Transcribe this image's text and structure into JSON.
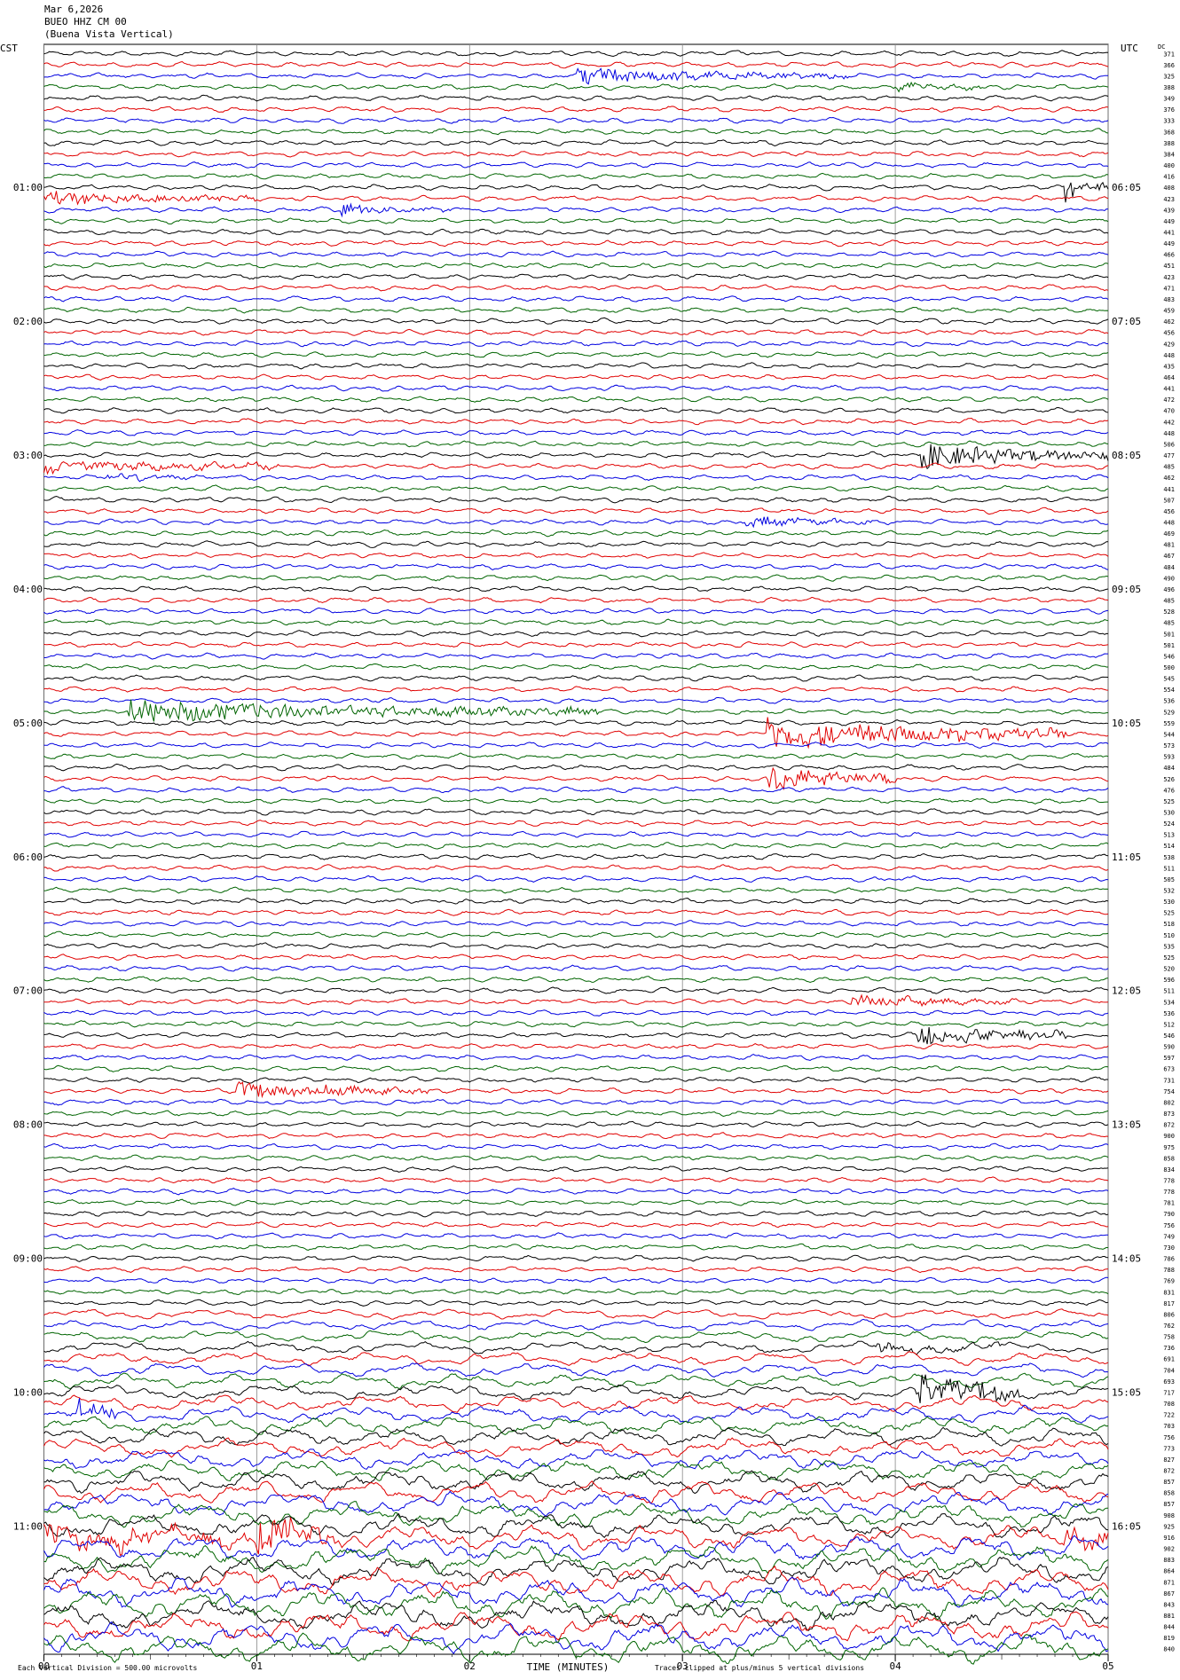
{
  "chart_data": {
    "type": "helicorder",
    "title": [
      "Mar 6,2026",
      "BUEO HHZ CM 00",
      "(Buena Vista Vertical)"
    ],
    "left_zone": "CST",
    "right_zone": "UTC",
    "dc_header": "DC",
    "left_labels": [
      "01:00",
      "02:00",
      "03:00",
      "04:00",
      "05:00",
      "06:00",
      "07:00",
      "08:00",
      "09:00",
      "10:00",
      "11:00"
    ],
    "right_labels": [
      "06:05",
      "07:05",
      "08:05",
      "09:05",
      "10:05",
      "11:05",
      "12:05",
      "13:05",
      "14:05",
      "15:05",
      "16:05"
    ],
    "dc_values": [
      371,
      366,
      325,
      388,
      349,
      376,
      333,
      368,
      388,
      384,
      400,
      416,
      408,
      423,
      439,
      449,
      441,
      449,
      466,
      451,
      423,
      471,
      483,
      459,
      462,
      456,
      429,
      448,
      435,
      464,
      441,
      472,
      470,
      442,
      448,
      506,
      477,
      485,
      462,
      441,
      507,
      456,
      448,
      469,
      481,
      467,
      484,
      490,
      496,
      485,
      528,
      485,
      501,
      501,
      546,
      500,
      545,
      554,
      536,
      529,
      559,
      544,
      573,
      593,
      484,
      526,
      476,
      525,
      530,
      524,
      513,
      514,
      538,
      511,
      505,
      532,
      530,
      525,
      518,
      510,
      535,
      525,
      520,
      596,
      511,
      534,
      536,
      512,
      546,
      590,
      597,
      673,
      731,
      754,
      802,
      873,
      872,
      900,
      975,
      858,
      834,
      778,
      778,
      781,
      790,
      756,
      749,
      730,
      786,
      788,
      769,
      831,
      817,
      806,
      762,
      758,
      736,
      691,
      704,
      693,
      717,
      708,
      722,
      703,
      756,
      773,
      827,
      872,
      857,
      858,
      857,
      908,
      925,
      916,
      902,
      883,
      864,
      871,
      867,
      843,
      881,
      844,
      819,
      840
    ],
    "colors": [
      "#000000",
      "#e00000",
      "#0000e0",
      "#006400"
    ],
    "xlim": [
      0,
      5
    ],
    "xticks": [
      {
        "value": 0,
        "label": "00"
      },
      {
        "value": 1,
        "label": "01"
      },
      {
        "value": 2,
        "label": "02"
      },
      {
        "value": 3,
        "label": "03"
      },
      {
        "value": 4,
        "label": "04"
      },
      {
        "value": 5,
        "label": "05"
      }
    ],
    "xlabel": "TIME (MINUTES)",
    "scale_note": "Each Vertical Division =  500.00 microvolts",
    "clip_note": "Traces clipped at plus/minus 5 vertical divisions",
    "grid": true
  }
}
